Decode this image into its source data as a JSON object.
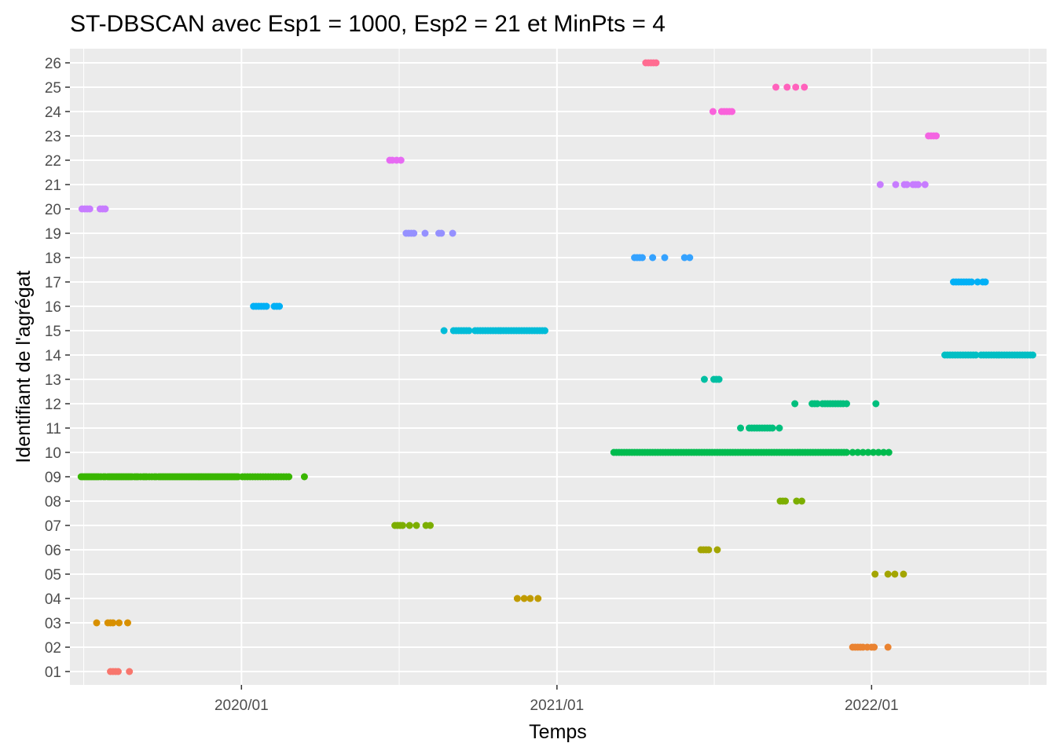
{
  "chart_data": {
    "type": "scatter",
    "title": "ST-DBSCAN avec Esp1 = 1000, Esp2 = 21 et MinPts = 4",
    "xlabel": "Temps",
    "ylabel": "Identifiant de l'agrégat",
    "x_ticks": [
      "2020/01",
      "2021/01",
      "2022/01"
    ],
    "y_categories": [
      "01",
      "02",
      "03",
      "04",
      "05",
      "06",
      "07",
      "08",
      "09",
      "10",
      "11",
      "12",
      "13",
      "14",
      "15",
      "16",
      "17",
      "18",
      "19",
      "20",
      "21",
      "22",
      "23",
      "24",
      "25",
      "26"
    ],
    "xlim": [
      "2019-06-16",
      "2022-07-23"
    ],
    "grid": true,
    "legend": "none",
    "series": [
      {
        "cluster": "01",
        "color": "#F8766D",
        "x": [
          "2019-08-02",
          "2019-08-05",
          "2019-08-08",
          "2019-08-11",
          "2019-08-24"
        ]
      },
      {
        "cluster": "02",
        "color": "#EA8331",
        "x": [
          "2021-12-10",
          "2021-12-13",
          "2021-12-16",
          "2021-12-19",
          "2021-12-22",
          "2021-12-27",
          "2022-01-01",
          "2022-01-04",
          "2022-01-20"
        ]
      },
      {
        "cluster": "03",
        "color": "#D89000",
        "x": [
          "2019-07-17",
          "2019-07-30",
          "2019-08-02",
          "2019-08-05",
          "2019-08-12",
          "2019-08-22"
        ]
      },
      {
        "cluster": "04",
        "color": "#C09B00",
        "x": [
          "2020-11-16",
          "2020-11-24",
          "2020-12-01",
          "2020-12-10"
        ]
      },
      {
        "cluster": "05",
        "color": "#A3A500",
        "x": [
          "2022-01-05",
          "2022-01-20",
          "2022-01-28",
          "2022-02-07"
        ]
      },
      {
        "cluster": "06",
        "color": "#A3A500",
        "x": [
          "2021-06-17",
          "2021-06-20",
          "2021-06-23",
          "2021-06-26",
          "2021-07-06"
        ]
      },
      {
        "cluster": "07",
        "color": "#7CAE00",
        "x": [
          "2020-06-27",
          "2020-06-30",
          "2020-07-03",
          "2020-07-06",
          "2020-07-14",
          "2020-07-22",
          "2020-08-02",
          "2020-08-07"
        ]
      },
      {
        "cluster": "08",
        "color": "#7CAE00",
        "x": [
          "2021-09-17",
          "2021-09-20",
          "2021-09-23",
          "2021-10-06",
          "2021-10-12"
        ]
      },
      {
        "cluster": "09",
        "color": "#39B600",
        "x": [
          "2019-06-29",
          "2019-07-01",
          "2019-07-03",
          "2019-07-05",
          "2019-07-07",
          "2019-07-09",
          "2019-07-11",
          "2019-07-13",
          "2019-07-15",
          "2019-07-17",
          "2019-07-19",
          "2019-07-22",
          "2019-07-25",
          "2019-07-27",
          "2019-07-30",
          "2019-08-01",
          "2019-08-03",
          "2019-08-05",
          "2019-08-07",
          "2019-08-09",
          "2019-08-11",
          "2019-08-13",
          "2019-08-15",
          "2019-08-17",
          "2019-08-19",
          "2019-08-21",
          "2019-08-23",
          "2019-08-25",
          "2019-08-27",
          "2019-08-30",
          "2019-09-01",
          "2019-09-03",
          "2019-09-06",
          "2019-09-09",
          "2019-09-11",
          "2019-09-13",
          "2019-09-16",
          "2019-09-19",
          "2019-09-22",
          "2019-09-24",
          "2019-09-27",
          "2019-09-29",
          "2019-10-01",
          "2019-10-03",
          "2019-10-05",
          "2019-10-07",
          "2019-10-09",
          "2019-10-11",
          "2019-10-13",
          "2019-10-15",
          "2019-10-17",
          "2019-10-19",
          "2019-10-21",
          "2019-10-23",
          "2019-10-25",
          "2019-10-27",
          "2019-10-29",
          "2019-10-31",
          "2019-11-02",
          "2019-11-04",
          "2019-11-06",
          "2019-11-08",
          "2019-11-10",
          "2019-11-12",
          "2019-11-14",
          "2019-11-16",
          "2019-11-18",
          "2019-11-20",
          "2019-11-22",
          "2019-11-24",
          "2019-11-26",
          "2019-11-28",
          "2019-11-30",
          "2019-12-02",
          "2019-12-04",
          "2019-12-06",
          "2019-12-08",
          "2019-12-10",
          "2019-12-12",
          "2019-12-14",
          "2019-12-16",
          "2019-12-18",
          "2019-12-20",
          "2019-12-22",
          "2019-12-24",
          "2019-12-26",
          "2019-12-28",
          "2020-01-02",
          "2020-01-05",
          "2020-01-08",
          "2020-01-11",
          "2020-01-14",
          "2020-01-17",
          "2020-01-20",
          "2020-01-23",
          "2020-01-26",
          "2020-01-29",
          "2020-02-01",
          "2020-02-04",
          "2020-02-07",
          "2020-02-10",
          "2020-02-13",
          "2020-02-16",
          "2020-02-19",
          "2020-02-22",
          "2020-02-25",
          "2020-03-14"
        ]
      },
      {
        "cluster": "10",
        "color": "#00BB4E",
        "x": [
          "2021-03-08",
          "2021-03-11",
          "2021-03-14",
          "2021-03-17",
          "2021-03-20",
          "2021-03-23",
          "2021-03-26",
          "2021-03-29",
          "2021-04-01",
          "2021-04-04",
          "2021-04-07",
          "2021-04-10",
          "2021-04-13",
          "2021-04-16",
          "2021-04-19",
          "2021-04-22",
          "2021-04-25",
          "2021-04-28",
          "2021-05-01",
          "2021-05-04",
          "2021-05-07",
          "2021-05-10",
          "2021-05-13",
          "2021-05-16",
          "2021-05-19",
          "2021-05-22",
          "2021-05-25",
          "2021-05-28",
          "2021-05-31",
          "2021-06-03",
          "2021-06-06",
          "2021-06-09",
          "2021-06-12",
          "2021-06-15",
          "2021-06-18",
          "2021-06-21",
          "2021-06-24",
          "2021-06-27",
          "2021-06-30",
          "2021-07-03",
          "2021-07-06",
          "2021-07-09",
          "2021-07-12",
          "2021-07-15",
          "2021-07-18",
          "2021-07-21",
          "2021-07-24",
          "2021-07-27",
          "2021-07-30",
          "2021-08-02",
          "2021-08-05",
          "2021-08-08",
          "2021-08-11",
          "2021-08-14",
          "2021-08-17",
          "2021-08-20",
          "2021-08-23",
          "2021-08-26",
          "2021-08-29",
          "2021-09-01",
          "2021-09-04",
          "2021-09-07",
          "2021-09-10",
          "2021-09-13",
          "2021-09-16",
          "2021-09-19",
          "2021-09-22",
          "2021-09-25",
          "2021-09-28",
          "2021-10-01",
          "2021-10-04",
          "2021-10-07",
          "2021-10-10",
          "2021-10-13",
          "2021-10-16",
          "2021-10-19",
          "2021-10-22",
          "2021-10-25",
          "2021-10-28",
          "2021-10-31",
          "2021-11-03",
          "2021-11-06",
          "2021-11-09",
          "2021-11-12",
          "2021-11-15",
          "2021-11-18",
          "2021-11-21",
          "2021-11-24",
          "2021-11-27",
          "2021-11-30",
          "2021-12-03",
          "2021-12-10",
          "2021-12-16",
          "2021-12-22",
          "2021-12-28",
          "2022-01-03",
          "2022-01-09",
          "2022-01-15",
          "2022-01-21"
        ]
      },
      {
        "cluster": "11",
        "color": "#00BF7D",
        "x": [
          "2021-08-02",
          "2021-08-12",
          "2021-08-15",
          "2021-08-18",
          "2021-08-21",
          "2021-08-24",
          "2021-08-27",
          "2021-08-30",
          "2021-09-02",
          "2021-09-05",
          "2021-09-08",
          "2021-09-16"
        ]
      },
      {
        "cluster": "12",
        "color": "#00BF7D",
        "x": [
          "2021-10-04",
          "2021-10-24",
          "2021-10-27",
          "2021-10-30",
          "2021-11-05",
          "2021-11-08",
          "2021-11-11",
          "2021-11-14",
          "2021-11-17",
          "2021-11-20",
          "2021-11-23",
          "2021-11-26",
          "2021-11-29",
          "2021-12-03",
          "2022-01-06"
        ]
      },
      {
        "cluster": "13",
        "color": "#00BFA2",
        "x": [
          "2021-06-21",
          "2021-07-02",
          "2021-07-05",
          "2021-07-08"
        ]
      },
      {
        "cluster": "14",
        "color": "#00BFC4",
        "x": [
          "2022-03-27",
          "2022-03-30",
          "2022-04-02",
          "2022-04-05",
          "2022-04-08",
          "2022-04-11",
          "2022-04-14",
          "2022-04-17",
          "2022-04-20",
          "2022-04-23",
          "2022-04-26",
          "2022-04-29",
          "2022-05-02",
          "2022-05-08",
          "2022-05-11",
          "2022-05-14",
          "2022-05-17",
          "2022-05-20",
          "2022-05-23",
          "2022-05-26",
          "2022-05-29",
          "2022-06-01",
          "2022-06-04",
          "2022-06-07",
          "2022-06-10",
          "2022-06-13",
          "2022-06-16",
          "2022-06-19",
          "2022-06-22",
          "2022-06-25",
          "2022-06-28",
          "2022-07-01",
          "2022-07-04",
          "2022-07-07"
        ]
      },
      {
        "cluster": "15",
        "color": "#00BCD8",
        "x": [
          "2020-08-23",
          "2020-09-03",
          "2020-09-06",
          "2020-09-09",
          "2020-09-12",
          "2020-09-15",
          "2020-09-18",
          "2020-09-21",
          "2020-09-28",
          "2020-10-01",
          "2020-10-04",
          "2020-10-07",
          "2020-10-10",
          "2020-10-13",
          "2020-10-16",
          "2020-10-19",
          "2020-10-22",
          "2020-10-25",
          "2020-10-28",
          "2020-10-31",
          "2020-11-03",
          "2020-11-06",
          "2020-11-09",
          "2020-11-12",
          "2020-11-15",
          "2020-11-18",
          "2020-11-21",
          "2020-11-24",
          "2020-11-27",
          "2020-11-30",
          "2020-12-03",
          "2020-12-06",
          "2020-12-09",
          "2020-12-12",
          "2020-12-15",
          "2020-12-18"
        ]
      },
      {
        "cluster": "16",
        "color": "#00B0F6",
        "x": [
          "2020-01-15",
          "2020-01-18",
          "2020-01-21",
          "2020-01-24",
          "2020-01-27",
          "2020-01-30",
          "2020-02-08",
          "2020-02-11",
          "2020-02-14"
        ]
      },
      {
        "cluster": "17",
        "color": "#00B0F6",
        "x": [
          "2022-04-06",
          "2022-04-09",
          "2022-04-12",
          "2022-04-15",
          "2022-04-18",
          "2022-04-21",
          "2022-04-24",
          "2022-04-27",
          "2022-05-04",
          "2022-05-10",
          "2022-05-13"
        ]
      },
      {
        "cluster": "18",
        "color": "#35A2FF",
        "x": [
          "2021-04-01",
          "2021-04-04",
          "2021-04-07",
          "2021-04-10",
          "2021-04-22",
          "2021-05-06",
          "2021-05-29",
          "2021-06-04"
        ]
      },
      {
        "cluster": "19",
        "color": "#9590FF",
        "x": [
          "2020-07-10",
          "2020-07-13",
          "2020-07-16",
          "2020-07-19",
          "2020-08-01",
          "2020-08-17",
          "2020-08-20",
          "2020-09-02"
        ]
      },
      {
        "cluster": "20",
        "color": "#C77CFF",
        "x": [
          "2019-06-30",
          "2019-07-03",
          "2019-07-06",
          "2019-07-09",
          "2019-07-21",
          "2019-07-24",
          "2019-07-27"
        ]
      },
      {
        "cluster": "21",
        "color": "#C77CFF",
        "x": [
          "2022-01-11",
          "2022-01-29",
          "2022-02-08",
          "2022-02-11",
          "2022-02-18",
          "2022-02-21",
          "2022-02-24",
          "2022-03-04"
        ]
      },
      {
        "cluster": "22",
        "color": "#E76BF3",
        "x": [
          "2020-06-21",
          "2020-06-24",
          "2020-06-29",
          "2020-07-04"
        ]
      },
      {
        "cluster": "23",
        "color": "#F464E2",
        "x": [
          "2022-03-08",
          "2022-03-11",
          "2022-03-14",
          "2022-03-17"
        ]
      },
      {
        "cluster": "24",
        "color": "#FA62DB",
        "x": [
          "2021-07-01",
          "2021-07-11",
          "2021-07-14",
          "2021-07-17",
          "2021-07-20",
          "2021-07-23"
        ]
      },
      {
        "cluster": "25",
        "color": "#FF62BC",
        "x": [
          "2021-09-12",
          "2021-09-25",
          "2021-10-05",
          "2021-10-15"
        ]
      },
      {
        "cluster": "26",
        "color": "#FF6C91",
        "x": [
          "2021-04-14",
          "2021-04-17",
          "2021-04-20",
          "2021-04-23",
          "2021-04-26"
        ]
      }
    ]
  }
}
